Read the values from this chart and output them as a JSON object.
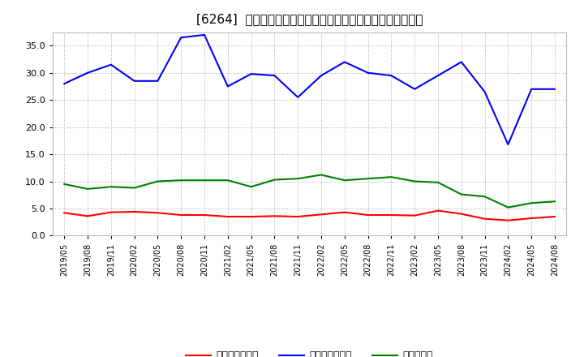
{
  "title": "[6264]  売上債権回転率、買入債務回転率、在庫回転率の推移",
  "dates": [
    "2019/05",
    "2019/08",
    "2019/11",
    "2020/02",
    "2020/05",
    "2020/08",
    "2020/11",
    "2021/02",
    "2021/05",
    "2021/08",
    "2021/11",
    "2022/02",
    "2022/05",
    "2022/08",
    "2022/11",
    "2023/02",
    "2023/05",
    "2023/08",
    "2023/11",
    "2024/02",
    "2024/05",
    "2024/08"
  ],
  "receivable_turnover": [
    4.2,
    3.6,
    4.3,
    4.4,
    4.2,
    3.8,
    3.8,
    3.5,
    3.5,
    3.6,
    3.5,
    3.9,
    4.3,
    3.8,
    3.8,
    3.7,
    4.6,
    4.0,
    3.1,
    2.8,
    3.2,
    3.5
  ],
  "payable_turnover": [
    28.0,
    30.0,
    31.5,
    28.5,
    28.5,
    36.5,
    37.0,
    27.5,
    29.8,
    29.5,
    25.5,
    29.5,
    32.0,
    30.0,
    29.5,
    27.0,
    29.5,
    32.0,
    26.5,
    16.8,
    27.0,
    27.0
  ],
  "inventory_turnover": [
    9.5,
    8.6,
    9.0,
    8.8,
    10.0,
    10.2,
    10.2,
    10.2,
    9.0,
    10.3,
    10.5,
    11.2,
    10.2,
    10.5,
    10.8,
    10.0,
    9.8,
    7.6,
    7.2,
    5.2,
    6.0,
    6.3
  ],
  "line_colors": {
    "receivable": "#ff0000",
    "payable": "#0000ff",
    "inventory": "#008000"
  },
  "legend_labels": {
    "receivable": "売上債権回転率",
    "payable": "買入債務回転率",
    "inventory": "在庫回転率"
  },
  "ylim": [
    0,
    37.5
  ],
  "yticks": [
    0.0,
    5.0,
    10.0,
    15.0,
    20.0,
    25.0,
    30.0,
    35.0
  ],
  "bg_color": "#ffffff",
  "grid_color": "#aaaaaa",
  "title_fontsize": 11
}
